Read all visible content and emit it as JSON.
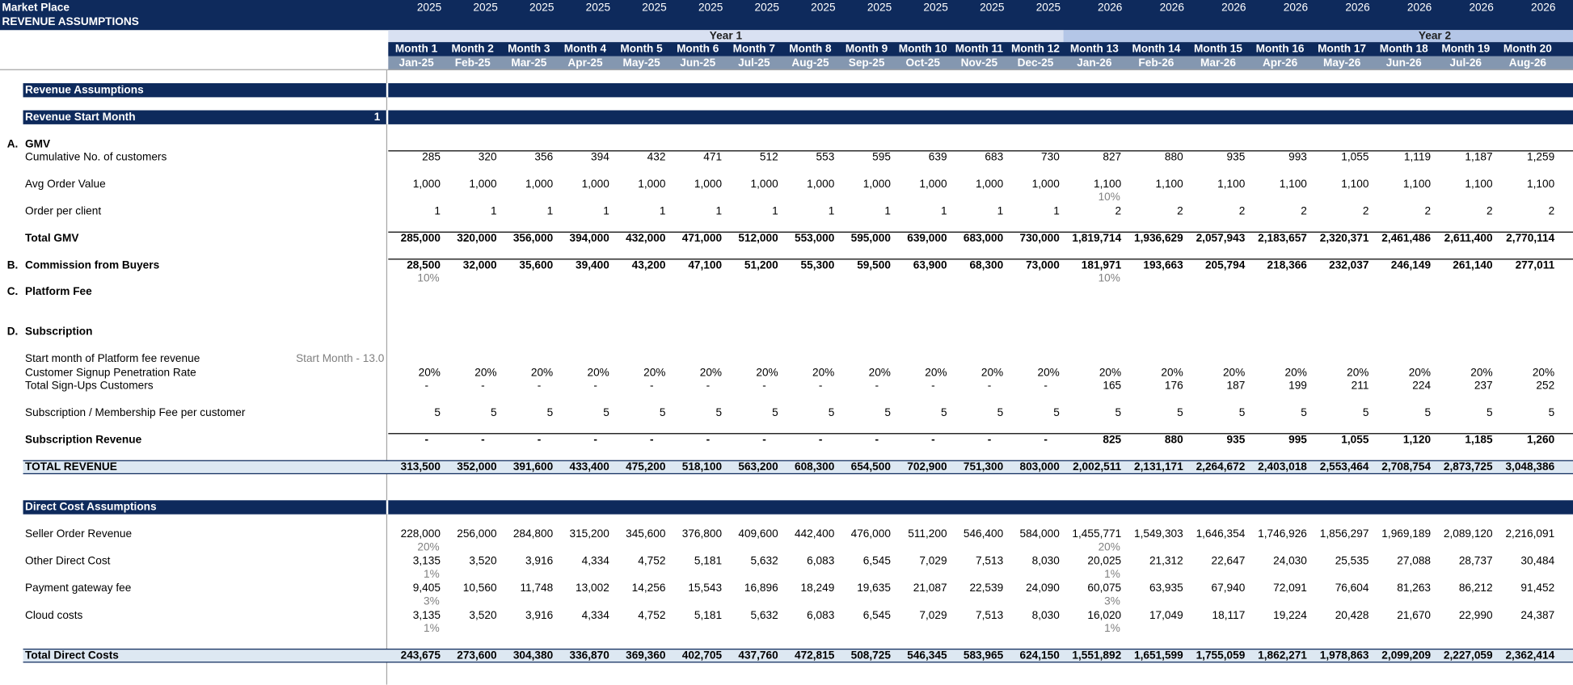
{
  "header": {
    "title": "Market Place",
    "subtitle": "REVENUE ASSUMPTIONS"
  },
  "years": [
    "2025",
    "2025",
    "2025",
    "2025",
    "2025",
    "2025",
    "2025",
    "2025",
    "2025",
    "2025",
    "2025",
    "2025",
    "2026",
    "2026",
    "2026",
    "2026",
    "2026",
    "2026",
    "2026",
    "2026"
  ],
  "year_bands": [
    "Year 1",
    "Year 2"
  ],
  "months": [
    "Month 1",
    "Month 2",
    "Month 3",
    "Month 4",
    "Month 5",
    "Month 6",
    "Month 7",
    "Month 8",
    "Month 9",
    "Month 10",
    "Month 11",
    "Month 12",
    "Month 13",
    "Month 14",
    "Month 15",
    "Month 16",
    "Month 17",
    "Month 18",
    "Month 19",
    "Month 20"
  ],
  "dates": [
    "Jan-25",
    "Feb-25",
    "Mar-25",
    "Apr-25",
    "May-25",
    "Jun-25",
    "Jul-25",
    "Aug-25",
    "Sep-25",
    "Oct-25",
    "Nov-25",
    "Dec-25",
    "Jan-26",
    "Feb-26",
    "Mar-26",
    "Apr-26",
    "May-26",
    "Jun-26",
    "Jul-26",
    "Aug-26"
  ],
  "rows": [
    {
      "label": "Revenue Assumptions"
    },
    {
      "label": "Revenue Start Month",
      "value": "1"
    },
    {
      "prefix": "A.",
      "label": "GMV"
    },
    {
      "label": "Cumulative No. of customers",
      "values": [
        "285",
        "320",
        "356",
        "394",
        "432",
        "471",
        "512",
        "553",
        "595",
        "639",
        "683",
        "730",
        "827",
        "880",
        "935",
        "993",
        "1,055",
        "1,119",
        "1,187",
        "1,259"
      ]
    },
    {
      "label": "Avg Order Value",
      "values": [
        "1,000",
        "1,000",
        "1,000",
        "1,000",
        "1,000",
        "1,000",
        "1,000",
        "1,000",
        "1,000",
        "1,000",
        "1,000",
        "1,000",
        "1,100",
        "1,100",
        "1,100",
        "1,100",
        "1,100",
        "1,100",
        "1,100",
        "1,100"
      ],
      "sub_values": [
        null,
        null,
        null,
        null,
        null,
        null,
        null,
        null,
        null,
        null,
        null,
        null,
        "10%",
        null,
        null,
        null,
        null,
        null,
        null,
        null
      ]
    },
    {
      "label": "Order per client",
      "values": [
        "1",
        "1",
        "1",
        "1",
        "1",
        "1",
        "1",
        "1",
        "1",
        "1",
        "1",
        "1",
        "2",
        "2",
        "2",
        "2",
        "2",
        "2",
        "2",
        "2"
      ]
    },
    {
      "label": "Total GMV",
      "values": [
        "285,000",
        "320,000",
        "356,000",
        "394,000",
        "432,000",
        "471,000",
        "512,000",
        "553,000",
        "595,000",
        "639,000",
        "683,000",
        "730,000",
        "1,819,714",
        "1,936,629",
        "2,057,943",
        "2,183,657",
        "2,320,371",
        "2,461,486",
        "2,611,400",
        "2,770,114"
      ]
    },
    {
      "prefix": "B.",
      "label": "Commission from Buyers",
      "values": [
        "28,500",
        "32,000",
        "35,600",
        "39,400",
        "43,200",
        "47,100",
        "51,200",
        "55,300",
        "59,500",
        "63,900",
        "68,300",
        "73,000",
        "181,971",
        "193,663",
        "205,794",
        "218,366",
        "232,037",
        "246,149",
        "261,140",
        "277,011"
      ],
      "sub_values": [
        "10%",
        null,
        null,
        null,
        null,
        null,
        null,
        null,
        null,
        null,
        null,
        null,
        "10%",
        null,
        null,
        null,
        null,
        null,
        null,
        null
      ]
    },
    {
      "prefix": "C.",
      "label": "Platform Fee"
    },
    {
      "prefix": "D.",
      "label": "Subscription"
    },
    {
      "label": "Start month of Platform fee revenue",
      "note": "Start Month -  13.0"
    },
    {
      "label": "Customer Signup Penetration Rate",
      "values": [
        "20%",
        "20%",
        "20%",
        "20%",
        "20%",
        "20%",
        "20%",
        "20%",
        "20%",
        "20%",
        "20%",
        "20%",
        "20%",
        "20%",
        "20%",
        "20%",
        "20%",
        "20%",
        "20%",
        "20%"
      ]
    },
    {
      "label": "Total Sign-Ups Customers",
      "values": [
        "-",
        "-",
        "-",
        "-",
        "-",
        "-",
        "-",
        "-",
        "-",
        "-",
        "-",
        "-",
        "165",
        "176",
        "187",
        "199",
        "211",
        "224",
        "237",
        "252"
      ]
    },
    {
      "label": "Subscription / Membership Fee per customer",
      "values": [
        "5",
        "5",
        "5",
        "5",
        "5",
        "5",
        "5",
        "5",
        "5",
        "5",
        "5",
        "5",
        "5",
        "5",
        "5",
        "5",
        "5",
        "5",
        "5",
        "5"
      ]
    },
    {
      "label": "Subscription Revenue",
      "values": [
        "-",
        "-",
        "-",
        "-",
        "-",
        "-",
        "-",
        "-",
        "-",
        "-",
        "-",
        "-",
        "825",
        "880",
        "935",
        "995",
        "1,055",
        "1,120",
        "1,185",
        "1,260"
      ]
    },
    {
      "label": "TOTAL REVENUE",
      "values": [
        "313,500",
        "352,000",
        "391,600",
        "433,400",
        "475,200",
        "518,100",
        "563,200",
        "608,300",
        "654,500",
        "702,900",
        "751,300",
        "803,000",
        "2,002,511",
        "2,131,171",
        "2,264,672",
        "2,403,018",
        "2,553,464",
        "2,708,754",
        "2,873,725",
        "3,048,386"
      ]
    },
    {
      "label": "Direct Cost Assumptions"
    },
    {
      "label": "Seller Order Revenue",
      "values": [
        "228,000",
        "256,000",
        "284,800",
        "315,200",
        "345,600",
        "376,800",
        "409,600",
        "442,400",
        "476,000",
        "511,200",
        "546,400",
        "584,000",
        "1,455,771",
        "1,549,303",
        "1,646,354",
        "1,746,926",
        "1,856,297",
        "1,969,189",
        "2,089,120",
        "2,216,091"
      ],
      "sub_values": [
        "20%",
        null,
        null,
        null,
        null,
        null,
        null,
        null,
        null,
        null,
        null,
        null,
        "20%",
        null,
        null,
        null,
        null,
        null,
        null,
        null
      ]
    },
    {
      "label": "Other Direct Cost",
      "values": [
        "3,135",
        "3,520",
        "3,916",
        "4,334",
        "4,752",
        "5,181",
        "5,632",
        "6,083",
        "6,545",
        "7,029",
        "7,513",
        "8,030",
        "20,025",
        "21,312",
        "22,647",
        "24,030",
        "25,535",
        "27,088",
        "28,737",
        "30,484"
      ],
      "sub_values": [
        "1%",
        null,
        null,
        null,
        null,
        null,
        null,
        null,
        null,
        null,
        null,
        null,
        "1%",
        null,
        null,
        null,
        null,
        null,
        null,
        null
      ]
    },
    {
      "label": "Payment gateway fee",
      "values": [
        "9,405",
        "10,560",
        "11,748",
        "13,002",
        "14,256",
        "15,543",
        "16,896",
        "18,249",
        "19,635",
        "21,087",
        "22,539",
        "24,090",
        "60,075",
        "63,935",
        "67,940",
        "72,091",
        "76,604",
        "81,263",
        "86,212",
        "91,452"
      ],
      "sub_values": [
        "3%",
        null,
        null,
        null,
        null,
        null,
        null,
        null,
        null,
        null,
        null,
        null,
        "3%",
        null,
        null,
        null,
        null,
        null,
        null,
        null
      ]
    },
    {
      "label": "Cloud costs",
      "values": [
        "3,135",
        "3,520",
        "3,916",
        "4,334",
        "4,752",
        "5,181",
        "5,632",
        "6,083",
        "6,545",
        "7,029",
        "7,513",
        "8,030",
        "16,020",
        "17,049",
        "18,117",
        "19,224",
        "20,428",
        "21,670",
        "22,990",
        "24,387"
      ],
      "sub_values": [
        "1%",
        null,
        null,
        null,
        null,
        null,
        null,
        null,
        null,
        null,
        null,
        null,
        "1%",
        null,
        null,
        null,
        null,
        null,
        null,
        null
      ]
    },
    {
      "label": "Total Direct Costs",
      "values": [
        "243,675",
        "273,600",
        "304,380",
        "336,870",
        "369,360",
        "402,705",
        "437,760",
        "472,815",
        "508,725",
        "546,345",
        "583,965",
        "624,150",
        "1,551,892",
        "1,651,599",
        "1,755,059",
        "1,862,271",
        "1,978,863",
        "2,099,209",
        "2,227,059",
        "2,362,414"
      ]
    }
  ]
}
